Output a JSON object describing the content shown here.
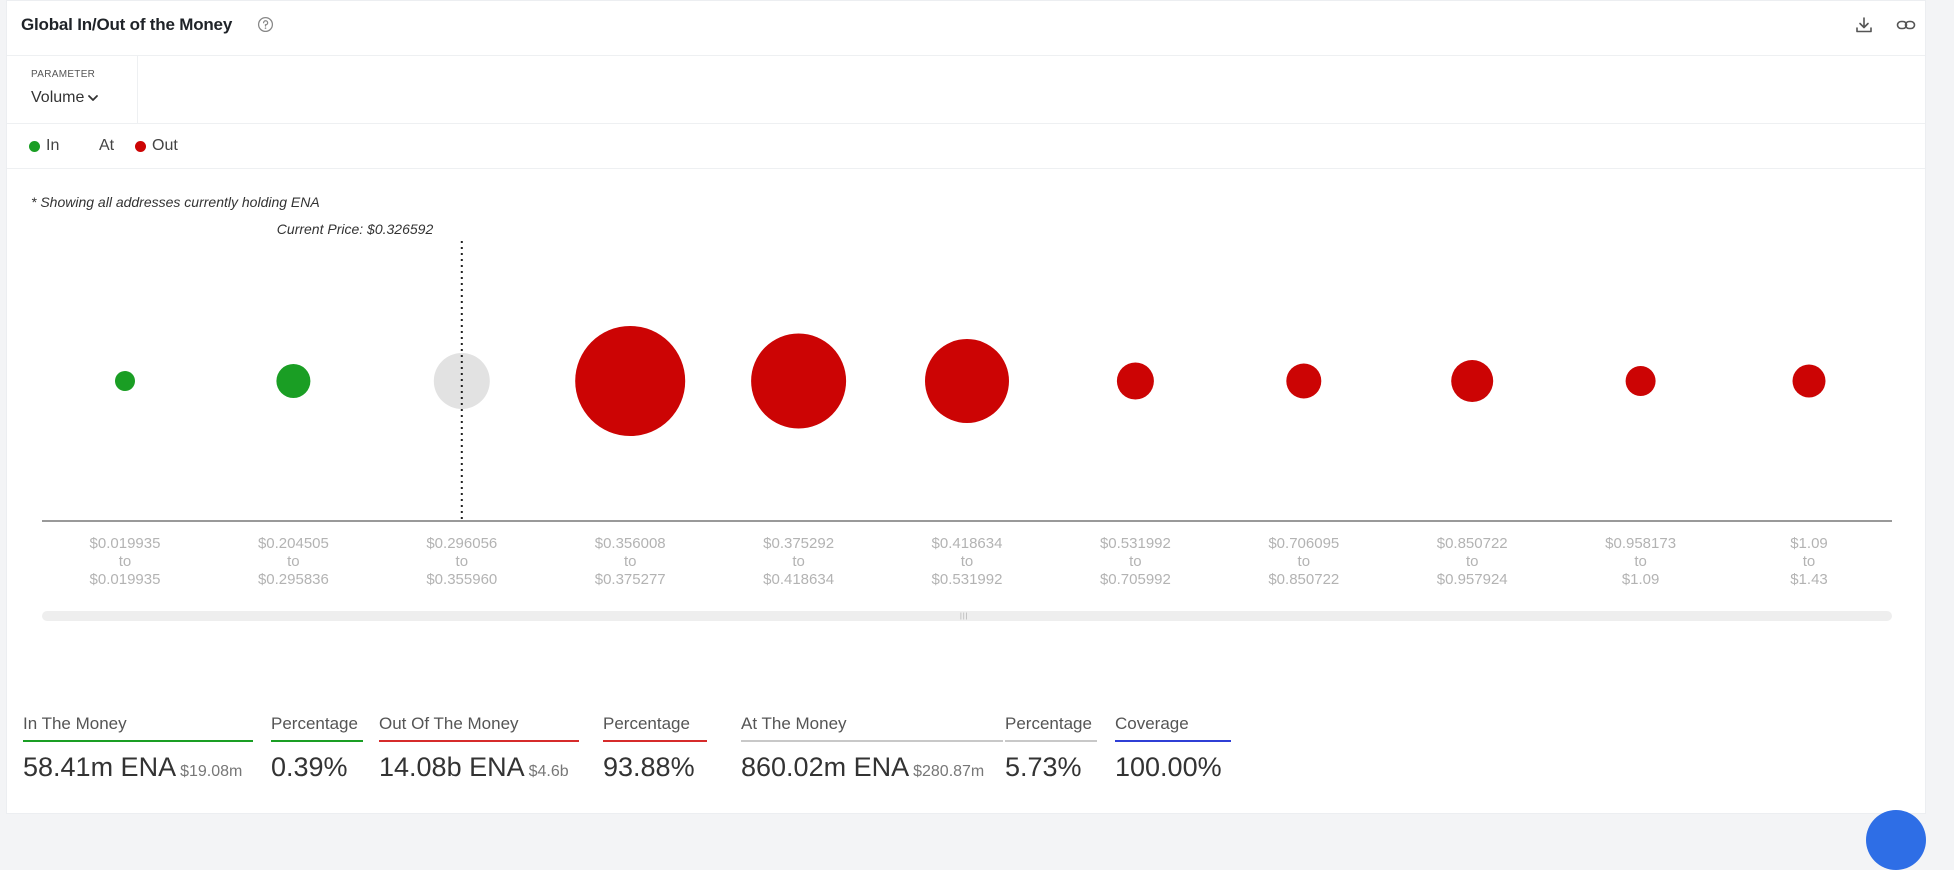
{
  "header": {
    "title": "Global In/Out of the Money",
    "help_icon": "question-circle-icon",
    "download_icon": "download-icon",
    "link_icon": "link-icon"
  },
  "parameter": {
    "label": "PARAMETER",
    "value": "Volume"
  },
  "legend": {
    "in": "In",
    "at": "At",
    "out": "Out"
  },
  "colors": {
    "in": "#1a9e24",
    "at": "#e2e2e2",
    "out": "#cc0404",
    "accent_blue": "#2f3fd6"
  },
  "note": "* Showing all addresses currently holding ENA",
  "current_price_label": "Current Price: $0.326592",
  "chart_data": {
    "type": "scatter",
    "encoding": "bubble size = volume",
    "current_price_bucket": 2,
    "buckets": [
      {
        "from": "$0.019935",
        "to": "$0.019935",
        "status": "in",
        "size": 20
      },
      {
        "from": "$0.204505",
        "to": "$0.295836",
        "status": "in",
        "size": 34
      },
      {
        "from": "$0.296056",
        "to": "$0.355960",
        "status": "at",
        "size": 56
      },
      {
        "from": "$0.356008",
        "to": "$0.375277",
        "status": "out",
        "size": 110
      },
      {
        "from": "$0.375292",
        "to": "$0.418634",
        "status": "out",
        "size": 95
      },
      {
        "from": "$0.418634",
        "to": "$0.531992",
        "status": "out",
        "size": 84
      },
      {
        "from": "$0.531992",
        "to": "$0.705992",
        "status": "out",
        "size": 37
      },
      {
        "from": "$0.706095",
        "to": "$0.850722",
        "status": "out",
        "size": 35
      },
      {
        "from": "$0.850722",
        "to": "$0.957924",
        "status": "out",
        "size": 42
      },
      {
        "from": "$0.958173",
        "to": "$1.09",
        "status": "out",
        "size": 30
      },
      {
        "from": "$1.09",
        "to": "$1.43",
        "status": "out",
        "size": 33
      }
    ],
    "range_separator": "to"
  },
  "stats": [
    {
      "label": "In The Money",
      "value": "58.41m ENA",
      "sub": "$19.08m",
      "color": "#1a9e24"
    },
    {
      "label": "Percentage",
      "value": "0.39%",
      "sub": "",
      "color": "#1a9e24"
    },
    {
      "label": "Out Of The Money",
      "value": "14.08b ENA",
      "sub": "$4.6b",
      "color": "#d62b2b"
    },
    {
      "label": "Percentage",
      "value": "93.88%",
      "sub": "",
      "color": "#d62b2b"
    },
    {
      "label": "At The Money",
      "value": "860.02m ENA",
      "sub": "$280.87m",
      "color": "#c8c8c8"
    },
    {
      "label": "Percentage",
      "value": "5.73%",
      "sub": "",
      "color": "#c8c8c8"
    },
    {
      "label": "Coverage",
      "value": "100.00%",
      "sub": "",
      "color": "#2f3fd6"
    }
  ]
}
